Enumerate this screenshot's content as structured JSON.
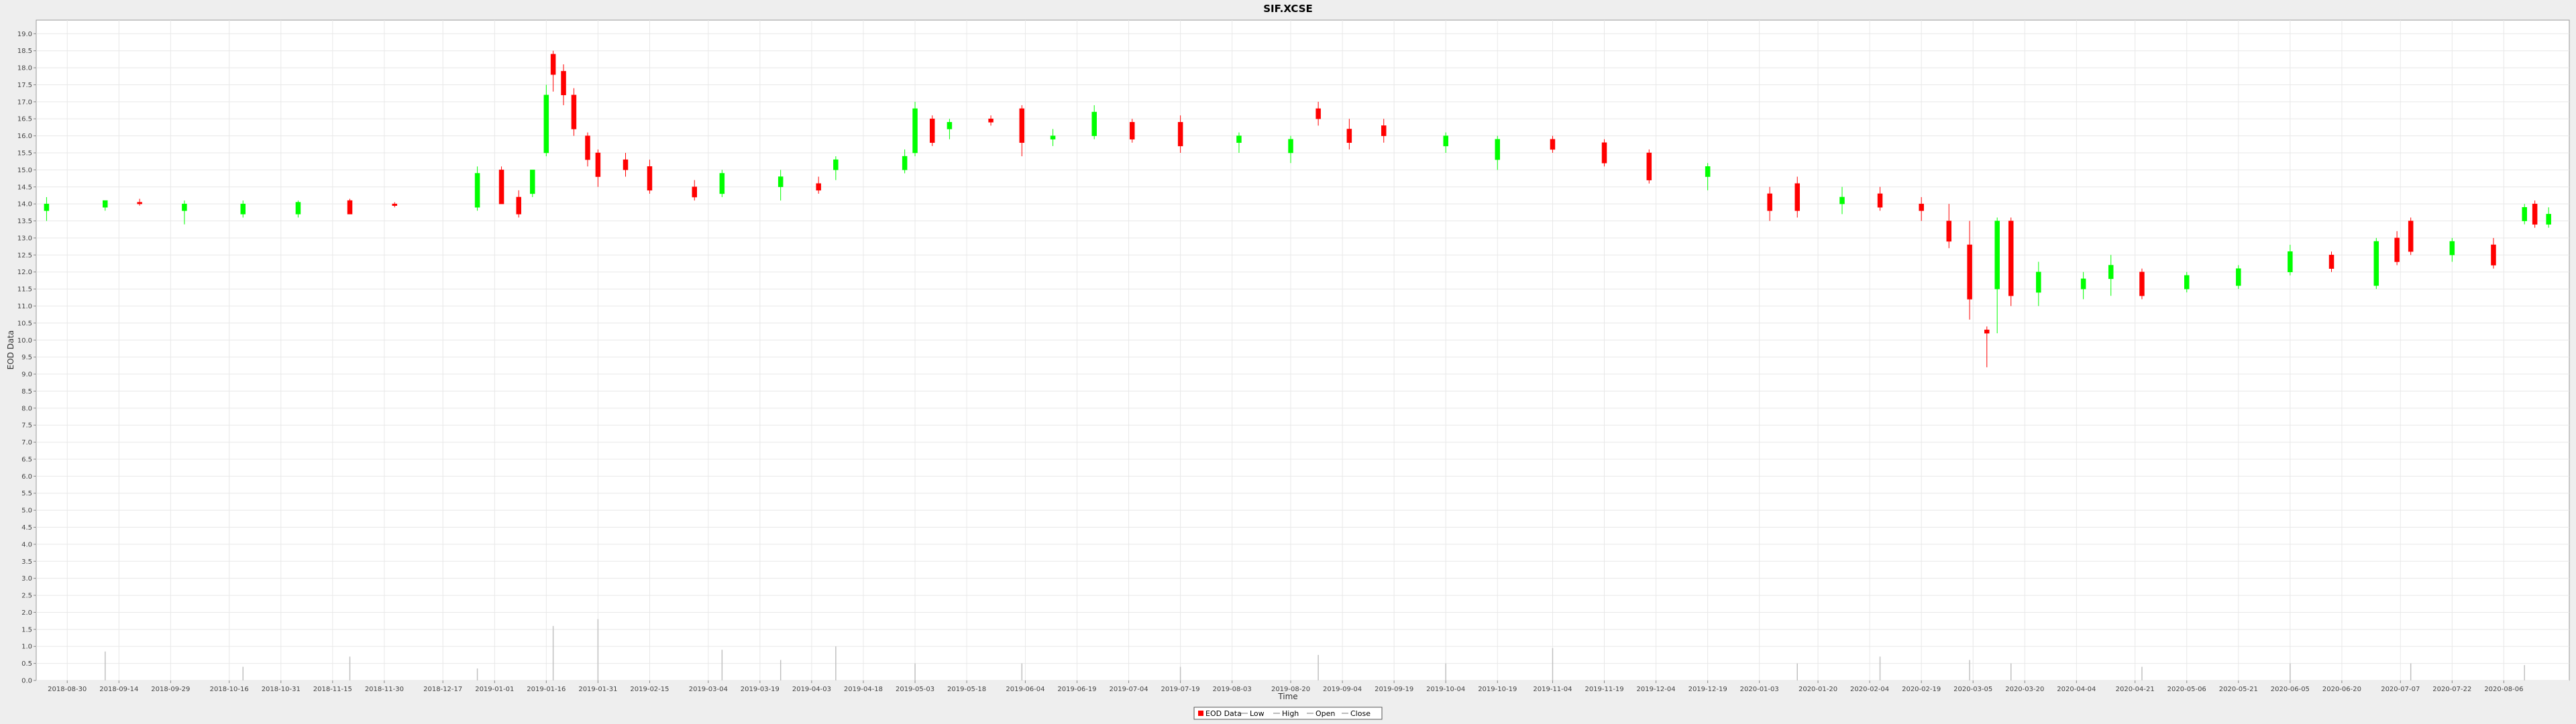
{
  "chart_data": {
    "type": "candlestick",
    "title": "SIF.XCSE",
    "xlabel": "Time",
    "ylabel": "EOD Data",
    "ylim": [
      0,
      19.4
    ],
    "grid": true,
    "legend_placement": "bottom-center",
    "y_ticks": [
      "0.0",
      "0.5",
      "1.0",
      "1.5",
      "2.0",
      "2.5",
      "3.0",
      "3.5",
      "4.0",
      "4.5",
      "5.0",
      "5.5",
      "6.0",
      "6.5",
      "7.0",
      "7.5",
      "8.0",
      "8.5",
      "9.0",
      "9.5",
      "10.0",
      "10.5",
      "11.0",
      "11.5",
      "12.0",
      "12.5",
      "13.0",
      "13.5",
      "14.0",
      "14.5",
      "15.0",
      "15.5",
      "16.0",
      "16.5",
      "17.0",
      "17.5",
      "18.0",
      "18.5",
      "19.0"
    ],
    "x_tick_labels": [
      "2018-08-30",
      "2018-09-14",
      "2018-09-29",
      "2018-10-16",
      "2018-10-31",
      "2018-11-15",
      "2018-11-30",
      "2018-12-17",
      "2019-01-01",
      "2019-01-16",
      "2019-01-31",
      "2019-02-15",
      "2019-03-04",
      "2019-03-19",
      "2019-04-03",
      "2019-04-18",
      "2019-05-03",
      "2019-05-18",
      "2019-06-04",
      "2019-06-19",
      "2019-07-04",
      "2019-07-19",
      "2019-08-03",
      "2019-08-20",
      "2019-09-04",
      "2019-09-19",
      "2019-10-04",
      "2019-10-19",
      "2019-11-04",
      "2019-11-19",
      "2019-12-04",
      "2019-12-19",
      "2020-01-03",
      "2020-01-20",
      "2020-02-04",
      "2020-02-19",
      "2020-03-05",
      "2020-03-20",
      "2020-04-04",
      "2020-04-21",
      "2020-05-06",
      "2020-05-21",
      "2020-06-05",
      "2020-06-20",
      "2020-07-07",
      "2020-07-22",
      "2020-08-06"
    ],
    "legend": [
      "EOD Data",
      "Low",
      "High",
      "Open",
      "Close"
    ],
    "colors": {
      "up": "#00ff00",
      "down": "#ff0000",
      "volume": "#c0c0c0",
      "grid": "#e8e8e8",
      "plot_bg": "#ffffff"
    },
    "series": [
      {
        "x": "2018-08-24",
        "o": 13.8,
        "h": 14.2,
        "l": 13.5,
        "c": 14.0
      },
      {
        "x": "2018-09-10",
        "o": 13.9,
        "h": 14.1,
        "l": 13.8,
        "c": 14.1
      },
      {
        "x": "2018-09-20",
        "o": 14.05,
        "h": 14.15,
        "l": 13.95,
        "c": 14.0
      },
      {
        "x": "2018-10-03",
        "o": 13.8,
        "h": 14.1,
        "l": 13.4,
        "c": 14.0
      },
      {
        "x": "2018-10-20",
        "o": 13.7,
        "h": 14.1,
        "l": 13.6,
        "c": 14.0
      },
      {
        "x": "2018-11-05",
        "o": 13.7,
        "h": 14.1,
        "l": 13.6,
        "c": 14.05
      },
      {
        "x": "2018-11-20",
        "o": 14.1,
        "h": 14.15,
        "l": 13.7,
        "c": 13.7
      },
      {
        "x": "2018-12-03",
        "o": 14.0,
        "h": 14.05,
        "l": 13.9,
        "c": 13.95
      },
      {
        "x": "2018-12-27",
        "o": 13.9,
        "h": 15.1,
        "l": 13.8,
        "c": 14.9
      },
      {
        "x": "2019-01-03",
        "o": 15.0,
        "h": 15.1,
        "l": 14.0,
        "c": 14.0
      },
      {
        "x": "2019-01-08",
        "o": 14.2,
        "h": 14.4,
        "l": 13.6,
        "c": 13.7
      },
      {
        "x": "2019-01-12",
        "o": 14.3,
        "h": 15.0,
        "l": 14.2,
        "c": 15.0
      },
      {
        "x": "2019-01-16",
        "o": 15.5,
        "h": 17.5,
        "l": 15.4,
        "c": 17.2
      },
      {
        "x": "2019-01-18",
        "o": 18.4,
        "h": 18.5,
        "l": 17.3,
        "c": 17.8
      },
      {
        "x": "2019-01-21",
        "o": 17.9,
        "h": 18.1,
        "l": 16.9,
        "c": 17.2
      },
      {
        "x": "2019-01-24",
        "o": 17.2,
        "h": 17.4,
        "l": 16.0,
        "c": 16.2
      },
      {
        "x": "2019-01-28",
        "o": 16.0,
        "h": 16.1,
        "l": 15.1,
        "c": 15.3
      },
      {
        "x": "2019-01-31",
        "o": 15.5,
        "h": 15.6,
        "l": 14.5,
        "c": 14.8
      },
      {
        "x": "2019-02-08",
        "o": 15.3,
        "h": 15.5,
        "l": 14.8,
        "c": 15.0
      },
      {
        "x": "2019-02-15",
        "o": 15.1,
        "h": 15.3,
        "l": 14.3,
        "c": 14.4
      },
      {
        "x": "2019-02-28",
        "o": 14.5,
        "h": 14.7,
        "l": 14.1,
        "c": 14.2
      },
      {
        "x": "2019-03-08",
        "o": 14.3,
        "h": 15.0,
        "l": 14.2,
        "c": 14.9
      },
      {
        "x": "2019-03-25",
        "o": 14.5,
        "h": 15.0,
        "l": 14.1,
        "c": 14.8
      },
      {
        "x": "2019-04-05",
        "o": 14.6,
        "h": 14.8,
        "l": 14.3,
        "c": 14.4
      },
      {
        "x": "2019-04-10",
        "o": 15.0,
        "h": 15.4,
        "l": 14.7,
        "c": 15.3
      },
      {
        "x": "2019-04-30",
        "o": 15.0,
        "h": 15.6,
        "l": 14.9,
        "c": 15.4
      },
      {
        "x": "2019-05-03",
        "o": 15.5,
        "h": 17.0,
        "l": 15.4,
        "c": 16.8
      },
      {
        "x": "2019-05-08",
        "o": 16.5,
        "h": 16.6,
        "l": 15.7,
        "c": 15.8
      },
      {
        "x": "2019-05-13",
        "o": 16.2,
        "h": 16.5,
        "l": 15.9,
        "c": 16.4
      },
      {
        "x": "2019-05-25",
        "o": 16.5,
        "h": 16.6,
        "l": 16.3,
        "c": 16.4
      },
      {
        "x": "2019-06-03",
        "o": 16.8,
        "h": 16.9,
        "l": 15.4,
        "c": 15.8
      },
      {
        "x": "2019-06-12",
        "o": 15.9,
        "h": 16.2,
        "l": 15.7,
        "c": 16.0
      },
      {
        "x": "2019-06-24",
        "o": 16.0,
        "h": 16.9,
        "l": 15.9,
        "c": 16.7
      },
      {
        "x": "2019-07-05",
        "o": 16.4,
        "h": 16.5,
        "l": 15.8,
        "c": 15.9
      },
      {
        "x": "2019-07-19",
        "o": 16.4,
        "h": 16.6,
        "l": 15.5,
        "c": 15.7
      },
      {
        "x": "2019-08-05",
        "o": 15.8,
        "h": 16.1,
        "l": 15.5,
        "c": 16.0
      },
      {
        "x": "2019-08-20",
        "o": 15.5,
        "h": 16.0,
        "l": 15.2,
        "c": 15.9
      },
      {
        "x": "2019-08-28",
        "o": 16.8,
        "h": 17.0,
        "l": 16.3,
        "c": 16.5
      },
      {
        "x": "2019-09-06",
        "o": 16.2,
        "h": 16.5,
        "l": 15.6,
        "c": 15.8
      },
      {
        "x": "2019-09-16",
        "o": 16.3,
        "h": 16.5,
        "l": 15.8,
        "c": 16.0
      },
      {
        "x": "2019-10-04",
        "o": 15.7,
        "h": 16.1,
        "l": 15.5,
        "c": 16.0
      },
      {
        "x": "2019-10-19",
        "o": 15.3,
        "h": 16.0,
        "l": 15.0,
        "c": 15.9
      },
      {
        "x": "2019-11-04",
        "o": 15.9,
        "h": 16.0,
        "l": 15.5,
        "c": 15.6
      },
      {
        "x": "2019-11-19",
        "o": 15.8,
        "h": 15.9,
        "l": 15.1,
        "c": 15.2
      },
      {
        "x": "2019-12-02",
        "o": 15.5,
        "h": 15.6,
        "l": 14.6,
        "c": 14.7
      },
      {
        "x": "2019-12-19",
        "o": 14.8,
        "h": 15.2,
        "l": 14.4,
        "c": 15.1
      },
      {
        "x": "2020-01-06",
        "o": 14.3,
        "h": 14.5,
        "l": 13.5,
        "c": 13.8
      },
      {
        "x": "2020-01-14",
        "o": 14.6,
        "h": 14.8,
        "l": 13.6,
        "c": 13.8
      },
      {
        "x": "2020-01-27",
        "o": 14.0,
        "h": 14.5,
        "l": 13.7,
        "c": 14.2
      },
      {
        "x": "2020-02-07",
        "o": 14.3,
        "h": 14.5,
        "l": 13.8,
        "c": 13.9
      },
      {
        "x": "2020-02-19",
        "o": 14.0,
        "h": 14.2,
        "l": 13.5,
        "c": 13.8
      },
      {
        "x": "2020-02-27",
        "o": 13.5,
        "h": 14.0,
        "l": 12.7,
        "c": 12.9
      },
      {
        "x": "2020-03-04",
        "o": 12.8,
        "h": 13.5,
        "l": 10.6,
        "c": 11.2
      },
      {
        "x": "2020-03-09",
        "o": 10.3,
        "h": 10.4,
        "l": 9.2,
        "c": 10.2
      },
      {
        "x": "2020-03-12",
        "o": 11.5,
        "h": 13.6,
        "l": 10.2,
        "c": 13.5
      },
      {
        "x": "2020-03-16",
        "o": 13.5,
        "h": 13.6,
        "l": 11.0,
        "c": 11.3
      },
      {
        "x": "2020-03-24",
        "o": 11.4,
        "h": 12.3,
        "l": 11.0,
        "c": 12.0
      },
      {
        "x": "2020-04-06",
        "o": 11.5,
        "h": 12.0,
        "l": 11.2,
        "c": 11.8
      },
      {
        "x": "2020-04-14",
        "o": 11.8,
        "h": 12.5,
        "l": 11.3,
        "c": 12.2
      },
      {
        "x": "2020-04-23",
        "o": 12.0,
        "h": 12.1,
        "l": 11.2,
        "c": 11.3
      },
      {
        "x": "2020-05-06",
        "o": 11.5,
        "h": 12.0,
        "l": 11.4,
        "c": 11.9
      },
      {
        "x": "2020-05-21",
        "o": 11.6,
        "h": 12.2,
        "l": 11.5,
        "c": 12.1
      },
      {
        "x": "2020-06-05",
        "o": 12.0,
        "h": 12.8,
        "l": 11.9,
        "c": 12.6
      },
      {
        "x": "2020-06-17",
        "o": 12.5,
        "h": 12.6,
        "l": 12.0,
        "c": 12.1
      },
      {
        "x": "2020-06-30",
        "o": 11.6,
        "h": 13.0,
        "l": 11.5,
        "c": 12.9
      },
      {
        "x": "2020-07-06",
        "o": 13.0,
        "h": 13.2,
        "l": 12.2,
        "c": 12.3
      },
      {
        "x": "2020-07-10",
        "o": 13.5,
        "h": 13.6,
        "l": 12.5,
        "c": 12.6
      },
      {
        "x": "2020-07-22",
        "o": 12.5,
        "h": 13.0,
        "l": 12.3,
        "c": 12.9
      },
      {
        "x": "2020-08-03",
        "o": 12.8,
        "h": 13.0,
        "l": 12.1,
        "c": 12.2
      },
      {
        "x": "2020-08-12",
        "o": 13.5,
        "h": 14.0,
        "l": 13.4,
        "c": 13.9
      },
      {
        "x": "2020-08-15",
        "o": 14.0,
        "h": 14.1,
        "l": 13.3,
        "c": 13.4
      },
      {
        "x": "2020-08-19",
        "o": 13.4,
        "h": 13.9,
        "l": 13.3,
        "c": 13.7
      }
    ],
    "volume": [
      {
        "x": "2018-09-10",
        "v": 0.85
      },
      {
        "x": "2018-10-20",
        "v": 0.4
      },
      {
        "x": "2018-11-20",
        "v": 0.7
      },
      {
        "x": "2018-12-27",
        "v": 0.35
      },
      {
        "x": "2019-01-18",
        "v": 1.6
      },
      {
        "x": "2019-01-31",
        "v": 1.8
      },
      {
        "x": "2019-03-08",
        "v": 0.9
      },
      {
        "x": "2019-03-25",
        "v": 0.6
      },
      {
        "x": "2019-04-10",
        "v": 1.0
      },
      {
        "x": "2019-05-03",
        "v": 0.5
      },
      {
        "x": "2019-06-03",
        "v": 0.5
      },
      {
        "x": "2019-07-19",
        "v": 0.4
      },
      {
        "x": "2019-08-28",
        "v": 0.75
      },
      {
        "x": "2019-10-04",
        "v": 0.5
      },
      {
        "x": "2019-11-04",
        "v": 0.95
      },
      {
        "x": "2020-01-14",
        "v": 0.5
      },
      {
        "x": "2020-02-07",
        "v": 0.7
      },
      {
        "x": "2020-03-04",
        "v": 0.6
      },
      {
        "x": "2020-03-16",
        "v": 0.5
      },
      {
        "x": "2020-04-23",
        "v": 0.4
      },
      {
        "x": "2020-06-05",
        "v": 0.5
      },
      {
        "x": "2020-07-10",
        "v": 0.5
      },
      {
        "x": "2020-08-12",
        "v": 0.45
      }
    ]
  }
}
